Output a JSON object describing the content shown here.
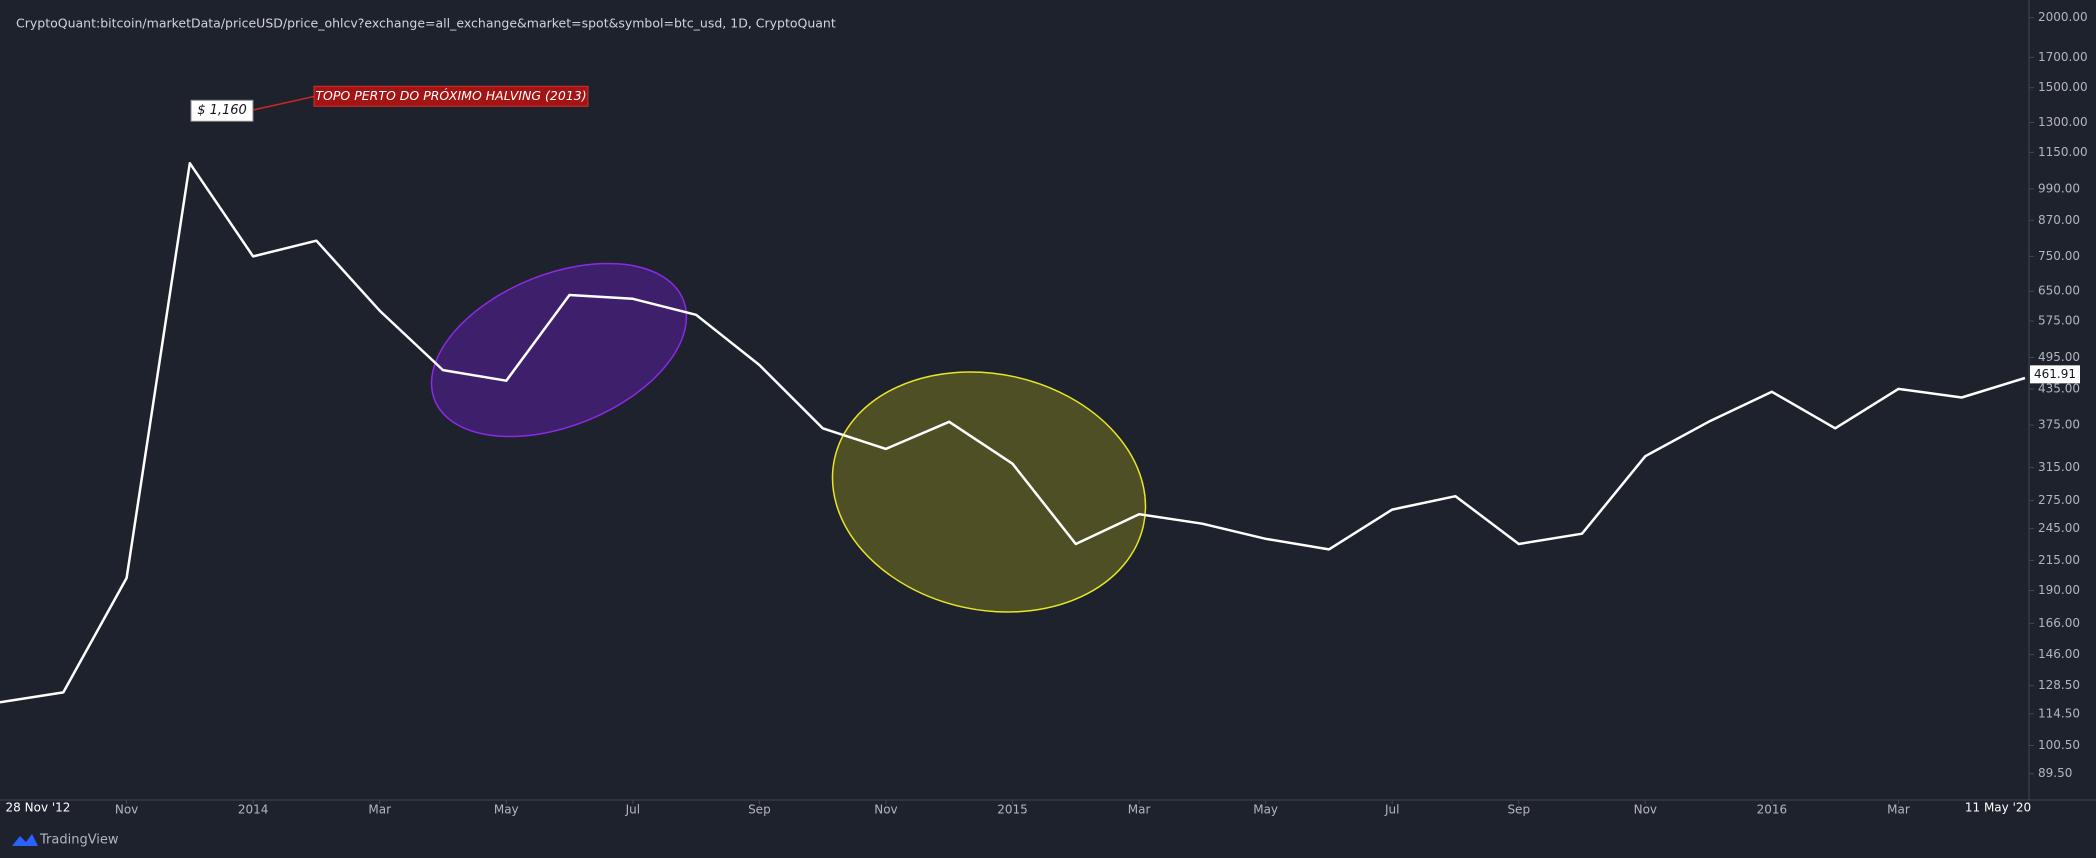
{
  "chart_data": {
    "type": "line",
    "title": "CryptoQuant:bitcoin/marketData/priceUSD/price_ohlcv?exchange=all_exchange&market=spot&symbol=btc_usd, 1D, CryptoQuant",
    "x": [
      "2013-09",
      "2013-10",
      "2013-11",
      "2013-12",
      "2014-01",
      "2014-02",
      "2014-03",
      "2014-04",
      "2014-05",
      "2014-06",
      "2014-07",
      "2014-08",
      "2014-09",
      "2014-10",
      "2014-11",
      "2014-12",
      "2015-01",
      "2015-02",
      "2015-03",
      "2015-04",
      "2015-05",
      "2015-06",
      "2015-07",
      "2015-08",
      "2015-09",
      "2015-10",
      "2015-11",
      "2015-12",
      "2016-01",
      "2016-02",
      "2016-03",
      "2016-04",
      "2016-05"
    ],
    "values": [
      120,
      125,
      200,
      1100,
      750,
      800,
      600,
      470,
      450,
      640,
      630,
      590,
      480,
      370,
      340,
      380,
      320,
      230,
      260,
      250,
      235,
      225,
      265,
      280,
      230,
      240,
      330,
      380,
      430,
      370,
      435,
      420,
      455
    ],
    "color": "#ffffff",
    "log_scale": true,
    "xlim": [
      "2013-09",
      "2016-05"
    ],
    "xticks": [
      {
        "value": "2013-11",
        "label": "Nov"
      },
      {
        "value": "2014-01",
        "label": "2014"
      },
      {
        "value": "2014-03",
        "label": "Mar"
      },
      {
        "value": "2014-05",
        "label": "May"
      },
      {
        "value": "2014-07",
        "label": "Jul"
      },
      {
        "value": "2014-09",
        "label": "Sep"
      },
      {
        "value": "2014-11",
        "label": "Nov"
      },
      {
        "value": "2015-01",
        "label": "2015"
      },
      {
        "value": "2015-03",
        "label": "Mar"
      },
      {
        "value": "2015-05",
        "label": "May"
      },
      {
        "value": "2015-07",
        "label": "Jul"
      },
      {
        "value": "2015-09",
        "label": "Sep"
      },
      {
        "value": "2015-11",
        "label": "Nov"
      },
      {
        "value": "2016-01",
        "label": "2016"
      },
      {
        "value": "2016-03",
        "label": "Mar"
      }
    ],
    "x_start_label": "28 Nov '12",
    "x_end_label": "11 May '20",
    "ylim": [
      82,
      2090
    ],
    "yticks": [
      {
        "value": 2000,
        "label": "2000.00"
      },
      {
        "value": 1700,
        "label": "1700.00"
      },
      {
        "value": 1500,
        "label": "1500.00"
      },
      {
        "value": 1300,
        "label": "1300.00"
      },
      {
        "value": 1150,
        "label": "1150.00"
      },
      {
        "value": 990,
        "label": "990.00"
      },
      {
        "value": 870,
        "label": "870.00"
      },
      {
        "value": 750,
        "label": "750.00"
      },
      {
        "value": 650,
        "label": "650.00"
      },
      {
        "value": 575,
        "label": "575.00"
      },
      {
        "value": 495,
        "label": "495.00"
      },
      {
        "value": 435,
        "label": "435.00"
      },
      {
        "value": 375,
        "label": "375.00"
      },
      {
        "value": 315,
        "label": "315.00"
      },
      {
        "value": 275,
        "label": "275.00"
      },
      {
        "value": 245,
        "label": "245.00"
      },
      {
        "value": 215,
        "label": "215.00"
      },
      {
        "value": 190,
        "label": "190.00"
      },
      {
        "value": 166,
        "label": "166.00"
      },
      {
        "value": 146,
        "label": "146.00"
      },
      {
        "value": 128.5,
        "label": "128.50"
      },
      {
        "value": 114.5,
        "label": "114.50"
      },
      {
        "value": 100.5,
        "label": "100.50"
      },
      {
        "value": 89.5,
        "label": "89.50"
      }
    ],
    "last_value": 461.91,
    "annotation": {
      "label": "$ 1,160",
      "value": 1160,
      "text": "TOPO PERTO DO PRÓXIMO HALVING (2013)"
    },
    "brand": "TradingView"
  }
}
